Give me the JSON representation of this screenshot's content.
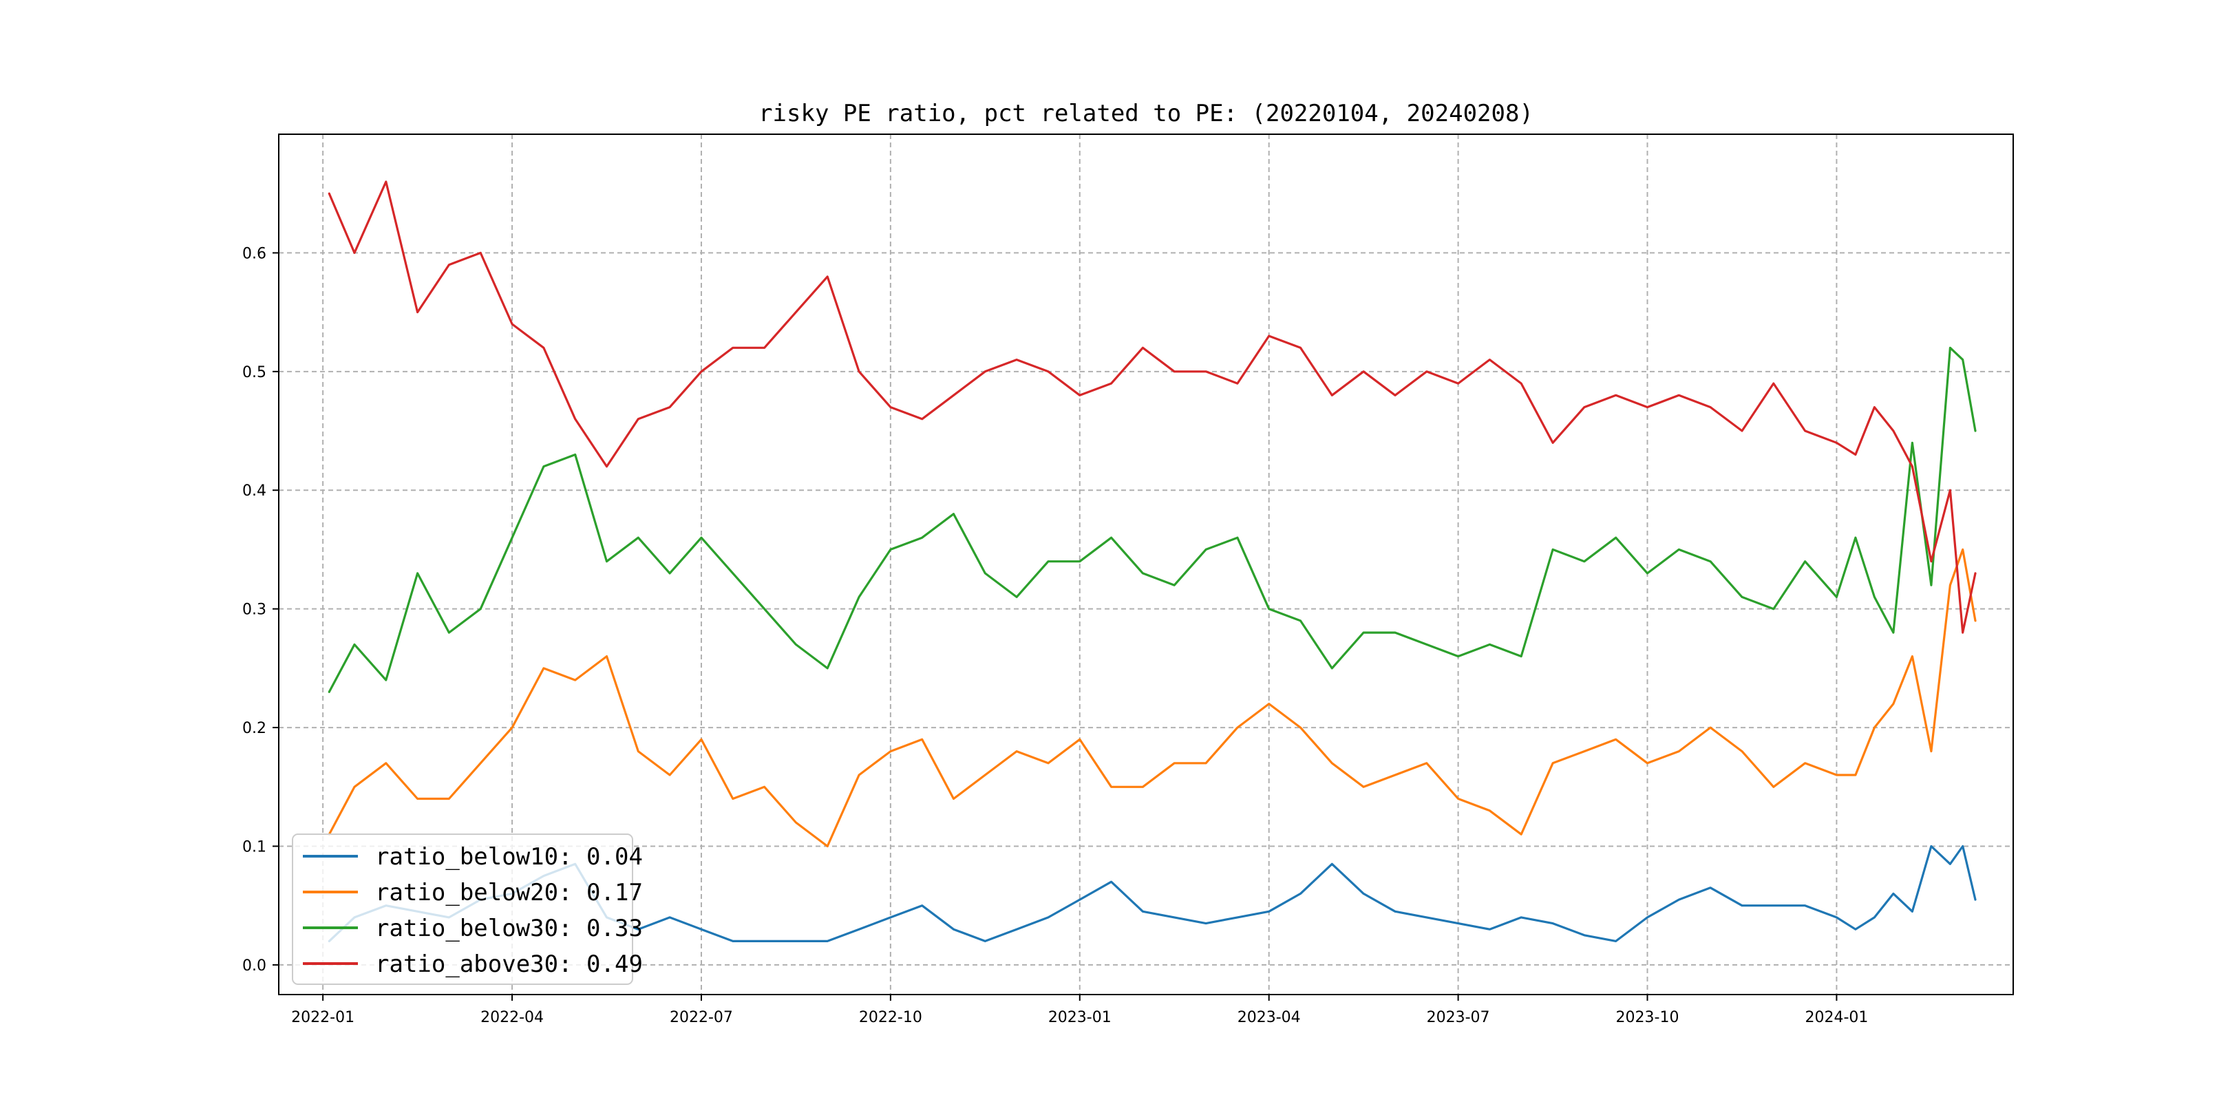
{
  "chart_data": {
    "type": "line",
    "title": "risky PE ratio, pct related to PE: (20220104, 20240208)",
    "xlabel": "",
    "ylabel": "",
    "x_range": [
      "2022-01-04",
      "2024-02-08"
    ],
    "xlim_months": [
      -0.7,
      26.8
    ],
    "ylim": [
      -0.025,
      0.7
    ],
    "grid": true,
    "legend_position": "lower-left",
    "x_ticks": [
      {
        "month_index": 0,
        "label": "2022-01"
      },
      {
        "month_index": 3,
        "label": "2022-04"
      },
      {
        "month_index": 6,
        "label": "2022-07"
      },
      {
        "month_index": 9,
        "label": "2022-10"
      },
      {
        "month_index": 12,
        "label": "2023-01"
      },
      {
        "month_index": 15,
        "label": "2023-04"
      },
      {
        "month_index": 18,
        "label": "2023-07"
      },
      {
        "month_index": 21,
        "label": "2023-10"
      },
      {
        "month_index": 24,
        "label": "2024-01"
      }
    ],
    "y_ticks": [
      {
        "value": 0.0,
        "label": "0.0"
      },
      {
        "value": 0.1,
        "label": "0.1"
      },
      {
        "value": 0.2,
        "label": "0.2"
      },
      {
        "value": 0.3,
        "label": "0.3"
      },
      {
        "value": 0.4,
        "label": "0.4"
      },
      {
        "value": 0.5,
        "label": "0.5"
      },
      {
        "value": 0.6,
        "label": "0.6"
      }
    ],
    "x_unit": "months since 2022-01-01",
    "x": [
      0.1,
      0.5,
      1.0,
      1.5,
      2.0,
      2.5,
      3.0,
      3.5,
      4.0,
      4.5,
      5.0,
      5.5,
      6.0,
      6.5,
      7.0,
      7.5,
      8.0,
      8.5,
      9.0,
      9.5,
      10.0,
      10.5,
      11.0,
      11.5,
      12.0,
      12.5,
      13.0,
      13.5,
      14.0,
      14.5,
      15.0,
      15.5,
      16.0,
      16.5,
      17.0,
      17.5,
      18.0,
      18.5,
      19.0,
      19.5,
      20.0,
      20.5,
      21.0,
      21.5,
      22.0,
      22.5,
      23.0,
      23.5,
      24.0,
      24.3,
      24.6,
      24.9,
      25.2,
      25.5,
      25.8,
      26.0,
      26.2
    ],
    "series": [
      {
        "name": "ratio_below10",
        "label": "ratio_below10: 0.04",
        "color": "#1f77b4",
        "values": [
          0.02,
          0.04,
          0.05,
          0.045,
          0.04,
          0.055,
          0.06,
          0.075,
          0.085,
          0.04,
          0.03,
          0.04,
          0.03,
          0.02,
          0.02,
          0.02,
          0.02,
          0.03,
          0.04,
          0.05,
          0.03,
          0.02,
          0.03,
          0.04,
          0.055,
          0.07,
          0.045,
          0.04,
          0.035,
          0.04,
          0.045,
          0.06,
          0.085,
          0.06,
          0.045,
          0.04,
          0.035,
          0.03,
          0.04,
          0.035,
          0.025,
          0.02,
          0.04,
          0.055,
          0.065,
          0.05,
          0.05,
          0.05,
          0.04,
          0.03,
          0.04,
          0.06,
          0.045,
          0.1,
          0.085,
          0.1,
          0.055
        ]
      },
      {
        "name": "ratio_below20",
        "label": "ratio_below20: 0.17",
        "color": "#ff7f0e",
        "values": [
          0.11,
          0.15,
          0.17,
          0.14,
          0.14,
          0.17,
          0.2,
          0.25,
          0.24,
          0.26,
          0.18,
          0.16,
          0.19,
          0.14,
          0.15,
          0.12,
          0.1,
          0.16,
          0.18,
          0.19,
          0.14,
          0.16,
          0.18,
          0.17,
          0.19,
          0.15,
          0.15,
          0.17,
          0.17,
          0.2,
          0.22,
          0.2,
          0.17,
          0.15,
          0.16,
          0.17,
          0.14,
          0.13,
          0.11,
          0.17,
          0.18,
          0.19,
          0.17,
          0.18,
          0.2,
          0.18,
          0.15,
          0.17,
          0.16,
          0.16,
          0.2,
          0.22,
          0.26,
          0.18,
          0.32,
          0.35,
          0.29
        ]
      },
      {
        "name": "ratio_below30",
        "label": "ratio_below30: 0.33",
        "color": "#2ca02c",
        "values": [
          0.23,
          0.27,
          0.24,
          0.33,
          0.28,
          0.3,
          0.36,
          0.42,
          0.43,
          0.34,
          0.36,
          0.33,
          0.36,
          0.33,
          0.3,
          0.27,
          0.25,
          0.31,
          0.35,
          0.36,
          0.38,
          0.33,
          0.31,
          0.34,
          0.34,
          0.36,
          0.33,
          0.32,
          0.35,
          0.36,
          0.3,
          0.29,
          0.25,
          0.28,
          0.28,
          0.27,
          0.26,
          0.27,
          0.26,
          0.35,
          0.34,
          0.36,
          0.33,
          0.35,
          0.34,
          0.31,
          0.3,
          0.34,
          0.31,
          0.36,
          0.31,
          0.28,
          0.44,
          0.32,
          0.52,
          0.51,
          0.45
        ]
      },
      {
        "name": "ratio_above30",
        "label": "ratio_above30: 0.49",
        "color": "#d62728",
        "values": [
          0.65,
          0.6,
          0.66,
          0.55,
          0.59,
          0.6,
          0.54,
          0.52,
          0.46,
          0.42,
          0.46,
          0.47,
          0.5,
          0.52,
          0.52,
          0.55,
          0.58,
          0.5,
          0.47,
          0.46,
          0.48,
          0.5,
          0.51,
          0.5,
          0.48,
          0.49,
          0.52,
          0.5,
          0.5,
          0.49,
          0.53,
          0.52,
          0.48,
          0.5,
          0.48,
          0.5,
          0.49,
          0.51,
          0.49,
          0.44,
          0.47,
          0.48,
          0.47,
          0.48,
          0.47,
          0.45,
          0.49,
          0.45,
          0.44,
          0.43,
          0.47,
          0.45,
          0.42,
          0.34,
          0.4,
          0.28,
          0.33
        ]
      }
    ]
  }
}
